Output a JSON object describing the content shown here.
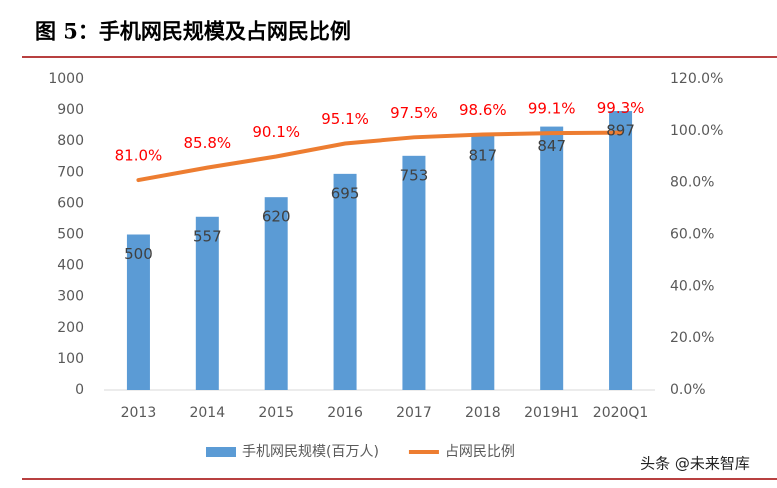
{
  "chart_data": {
    "type": "bar-line",
    "title": "图 5：手机网民规模及占网民比例",
    "categories": [
      "2013",
      "2014",
      "2015",
      "2016",
      "2017",
      "2018",
      "2019H1",
      "2020Q1"
    ],
    "series": [
      {
        "name": "手机网民规模(百万人)",
        "type": "bar",
        "color": "#5b9bd5",
        "values": [
          500,
          557,
          620,
          695,
          753,
          817,
          847,
          897
        ]
      },
      {
        "name": "占网民比例",
        "type": "line",
        "axis": "y2",
        "color": "#ed7d31",
        "values": [
          81.0,
          85.8,
          90.1,
          95.1,
          97.5,
          98.6,
          99.1,
          99.3
        ],
        "value_labels": [
          "81.0%",
          "85.8%",
          "90.1%",
          "95.1%",
          "97.5%",
          "98.6%",
          "99.1%",
          "99.3%"
        ]
      }
    ],
    "ylim": [
      0,
      1000
    ],
    "yticks": [
      0,
      100,
      200,
      300,
      400,
      500,
      600,
      700,
      800,
      900,
      1000
    ],
    "y2lim": [
      0,
      120
    ],
    "y2ticks": [
      {
        "value": 0,
        "label": "0.0%"
      },
      {
        "value": 20,
        "label": "20.0%"
      },
      {
        "value": 40,
        "label": "40.0%"
      },
      {
        "value": 60,
        "label": "60.0%"
      },
      {
        "value": 80,
        "label": "80.0%"
      },
      {
        "value": 100,
        "label": "100.0%"
      },
      {
        "value": 120,
        "label": "120.0%"
      }
    ],
    "grid": false,
    "legend": "bottom"
  },
  "watermark": "头条 @未来智库"
}
